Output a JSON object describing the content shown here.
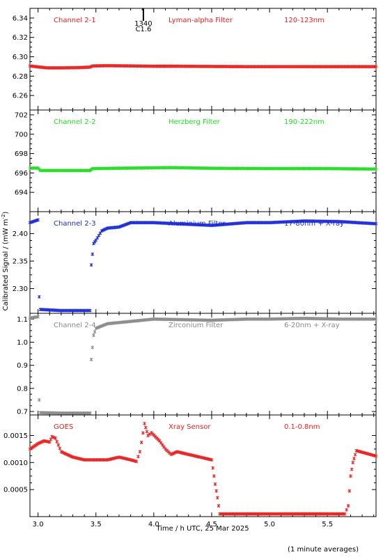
{
  "chart_data": {
    "type": "scatter",
    "ylabel": "Calibrated Signal / (mW m",
    "ylabel_superscript": "-2",
    "ylabel_close": ")",
    "xlabel": "Time / h UTC, 25 Mar 2025",
    "footnote": "(1 minute averages)",
    "xlim": [
      2.93,
      5.92
    ],
    "x_ticks": [
      3.0,
      3.5,
      4.0,
      4.5,
      5.0,
      5.5
    ],
    "x_tick_labels": [
      "3.0",
      "3.5",
      "4.0",
      "4.5",
      "5.0",
      "5.5"
    ],
    "marker": {
      "x": 3.91,
      "label_top": "1340",
      "label_bottom": "C1.6"
    },
    "panels": [
      {
        "channel": "Channel 2-1",
        "filter": "Lyman-alpha Filter",
        "band": "120-123nm",
        "color": "#e82020",
        "ylim": [
          6.245,
          6.35
        ],
        "y_ticks": [
          6.26,
          6.28,
          6.3,
          6.32,
          6.34
        ],
        "y_tick_labels": [
          "6.26",
          "6.28",
          "6.30",
          "6.32",
          "6.34"
        ],
        "series": [
          [
            2.93,
            6.2905
          ],
          [
            3.0,
            6.2895
          ],
          [
            3.08,
            6.2885
          ],
          [
            3.2,
            6.2885
          ],
          [
            3.35,
            6.2888
          ],
          [
            3.45,
            6.2893
          ],
          [
            3.47,
            6.2905
          ],
          [
            3.6,
            6.2908
          ],
          [
            3.8,
            6.2905
          ],
          [
            4.0,
            6.2902
          ],
          [
            4.2,
            6.2902
          ],
          [
            4.5,
            6.29
          ],
          [
            4.8,
            6.2898
          ],
          [
            5.0,
            6.2898
          ],
          [
            5.3,
            6.2898
          ],
          [
            5.6,
            6.2898
          ],
          [
            5.92,
            6.2898
          ]
        ]
      },
      {
        "channel": "Channel 2-2",
        "filter": "Herzberg Filter",
        "band": "190-222nm",
        "color": "#22dd22",
        "ylim": [
          692.0,
          702.5
        ],
        "y_ticks": [
          694,
          696,
          698,
          700,
          702
        ],
        "y_tick_labels": [
          "694",
          "696",
          "698",
          "700",
          "702"
        ],
        "series": [
          [
            2.93,
            696.5
          ],
          [
            3.0,
            696.5
          ],
          [
            3.02,
            696.25
          ],
          [
            3.2,
            696.25
          ],
          [
            3.45,
            696.25
          ],
          [
            3.47,
            696.45
          ],
          [
            3.8,
            696.5
          ],
          [
            4.15,
            696.55
          ],
          [
            4.5,
            696.48
          ],
          [
            5.0,
            696.45
          ],
          [
            5.5,
            696.45
          ],
          [
            5.92,
            696.4
          ]
        ]
      },
      {
        "channel": "Channel 2-3",
        "filter": "Aluminium Filter",
        "band": "17-80nm + X-ray",
        "color": "#1a2bd6",
        "ylim": [
          2.255,
          2.44
        ],
        "y_ticks": [
          2.3,
          2.35,
          2.4
        ],
        "y_tick_labels": [
          "2.30",
          "2.35",
          "2.40"
        ],
        "series": [
          [
            2.93,
            2.42
          ],
          [
            3.0,
            2.425
          ],
          [
            3.01,
            2.285
          ],
          [
            3.02,
            2.262
          ],
          [
            3.2,
            2.26
          ],
          [
            3.45,
            2.26
          ],
          [
            3.46,
            2.343
          ],
          [
            3.48,
            2.382
          ],
          [
            3.5,
            2.388
          ],
          [
            3.55,
            2.405
          ],
          [
            3.6,
            2.41
          ],
          [
            3.7,
            2.412
          ],
          [
            3.8,
            2.42
          ],
          [
            4.0,
            2.42
          ],
          [
            4.2,
            2.418
          ],
          [
            4.5,
            2.415
          ],
          [
            4.8,
            2.42
          ],
          [
            5.0,
            2.42
          ],
          [
            5.3,
            2.423
          ],
          [
            5.6,
            2.422
          ],
          [
            5.92,
            2.418
          ]
        ]
      },
      {
        "channel": "Channel 2-4",
        "filter": "Zirconium Filter",
        "band": "6-20nm + X-ray",
        "color": "#8a8a8a",
        "ylim": [
          0.685,
          1.125
        ],
        "y_ticks": [
          0.7,
          0.8,
          0.9,
          1.0,
          1.1
        ],
        "y_tick_labels": [
          "0.7",
          "0.8",
          "0.9",
          "1.0",
          "1.1"
        ],
        "series": [
          [
            2.93,
            1.105
          ],
          [
            3.0,
            1.11
          ],
          [
            3.01,
            0.75
          ],
          [
            3.02,
            0.695
          ],
          [
            3.2,
            0.693
          ],
          [
            3.45,
            0.693
          ],
          [
            3.46,
            0.925
          ],
          [
            3.48,
            1.03
          ],
          [
            3.5,
            1.06
          ],
          [
            3.6,
            1.08
          ],
          [
            3.8,
            1.09
          ],
          [
            4.0,
            1.1
          ],
          [
            4.2,
            1.098
          ],
          [
            4.5,
            1.095
          ],
          [
            4.8,
            1.1
          ],
          [
            5.0,
            1.1
          ],
          [
            5.3,
            1.103
          ],
          [
            5.6,
            1.1
          ],
          [
            5.92,
            1.1
          ]
        ]
      },
      {
        "channel": "GOES",
        "filter": "Xray Sensor",
        "band": "0.1-0.8nm",
        "color": "#e82020",
        "ylim": [
          0.0,
          0.00188
        ],
        "y_ticks": [
          0.0005,
          0.001,
          0.0015
        ],
        "y_tick_labels": [
          "0.0005",
          "0.0010",
          "0.0015"
        ],
        "series": [
          [
            2.93,
            0.00125
          ],
          [
            3.0,
            0.00135
          ],
          [
            3.05,
            0.0014
          ],
          [
            3.1,
            0.00138
          ],
          [
            3.12,
            0.00148
          ],
          [
            3.15,
            0.00145
          ],
          [
            3.2,
            0.0012
          ],
          [
            3.3,
            0.0011
          ],
          [
            3.4,
            0.00105
          ],
          [
            3.6,
            0.00105
          ],
          [
            3.7,
            0.0011
          ],
          [
            3.8,
            0.00105
          ],
          [
            3.85,
            0.00102
          ],
          [
            3.88,
            0.0012
          ],
          [
            3.92,
            0.00172
          ],
          [
            3.95,
            0.0015
          ],
          [
            3.98,
            0.00155
          ],
          [
            4.05,
            0.0014
          ],
          [
            4.1,
            0.00125
          ],
          [
            4.15,
            0.00115
          ],
          [
            4.2,
            0.0012
          ],
          [
            4.3,
            0.00115
          ],
          [
            4.4,
            0.0011
          ],
          [
            4.5,
            0.00105
          ],
          [
            4.53,
            0.0006
          ],
          [
            4.55,
            0.00035
          ],
          [
            4.57,
            5e-05
          ],
          [
            5.0,
            5e-05
          ],
          [
            5.5,
            5e-05
          ],
          [
            5.65,
            5e-05
          ],
          [
            5.68,
            0.0002
          ],
          [
            5.7,
            0.00075
          ],
          [
            5.72,
            0.001
          ],
          [
            5.75,
            0.00122
          ],
          [
            5.92,
            0.00112
          ]
        ]
      }
    ]
  }
}
